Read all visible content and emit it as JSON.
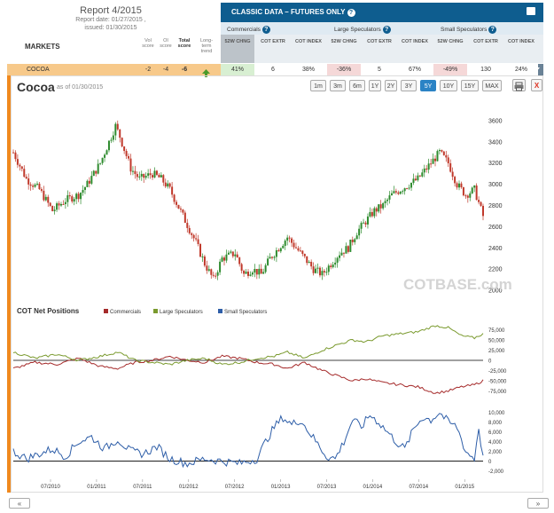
{
  "header": {
    "report_title": "Report 4/2015",
    "report_date": "Report date: 01/27/2015 ,",
    "issued": "issued: 01/30/2015",
    "markets_label": "MARKETS",
    "col_vol": "Vol score",
    "col_oi": "OI score",
    "col_total": "Total score",
    "col_trend": "Long-term trend"
  },
  "classic": {
    "title": "CLASSIC DATA – FUTURES ONLY",
    "groups": [
      "Commercials",
      "Large Speculators",
      "Small Speculators"
    ],
    "subcols": [
      "52W CHNG",
      "COT EXTR",
      "COT INDEX"
    ]
  },
  "row": {
    "market": "COCOA",
    "vol": "-2",
    "oi": "-4",
    "total": "-6",
    "trend_icon": "up-arrow-icon",
    "values": [
      "41%",
      "6",
      "38%",
      "-36%",
      "5",
      "67%",
      "-49%",
      "130",
      "24%"
    ]
  },
  "chart_header": {
    "title": "Cocoa",
    "as_of": "as of 01/30/2015",
    "ranges": [
      "1m",
      "3m",
      "6m",
      "1Y",
      "2Y",
      "3Y",
      "5Y",
      "10Y",
      "15Y",
      "MAX"
    ],
    "active_range": "5Y",
    "close_label": "X",
    "watermark": "COTBASE.com"
  },
  "cot_net": {
    "title": "COT Net Positions",
    "legend": [
      "Commercials",
      "Large Speculators",
      "Small Speculators"
    ],
    "colors": {
      "commercials": "#a52a2a",
      "large": "#7a9a2e",
      "small": "#2e5ea8",
      "up_candle": "#2e8b2e",
      "down_candle": "#c0392b"
    }
  },
  "nav": {
    "left": "«",
    "right": "»"
  },
  "chart_data": [
    {
      "type": "candlestick",
      "title": "Cocoa",
      "ylim": [
        1950,
        3750
      ],
      "y_ticks": [
        "3600",
        "3400",
        "3200",
        "3000",
        "2800",
        "2600",
        "2400",
        "2200",
        "2000"
      ],
      "y_tick_values": [
        3600,
        3400,
        3200,
        3000,
        2800,
        2600,
        2400,
        2200,
        2000
      ],
      "x_ticks": [
        "07/2010",
        "01/2011",
        "07/2011",
        "01/2012",
        "07/2012",
        "01/2013",
        "07/2013",
        "01/2014",
        "07/2014",
        "01/2015"
      ],
      "close_keypoints": [
        [
          0,
          3300
        ],
        [
          6,
          3050
        ],
        [
          12,
          2950
        ],
        [
          18,
          2750
        ],
        [
          24,
          2850
        ],
        [
          30,
          2900
        ],
        [
          34,
          3000
        ],
        [
          40,
          3200
        ],
        [
          44,
          3400
        ],
        [
          47,
          3550
        ],
        [
          49,
          3450
        ],
        [
          54,
          3150
        ],
        [
          58,
          3050
        ],
        [
          64,
          3100
        ],
        [
          68,
          3050
        ],
        [
          72,
          2950
        ],
        [
          78,
          2700
        ],
        [
          84,
          2450
        ],
        [
          88,
          2250
        ],
        [
          92,
          2100
        ],
        [
          96,
          2300
        ],
        [
          102,
          2350
        ],
        [
          106,
          2150
        ],
        [
          110,
          2200
        ],
        [
          114,
          2150
        ],
        [
          118,
          2300
        ],
        [
          122,
          2400
        ],
        [
          126,
          2500
        ],
        [
          130,
          2400
        ],
        [
          134,
          2300
        ],
        [
          138,
          2200
        ],
        [
          142,
          2150
        ],
        [
          146,
          2250
        ],
        [
          150,
          2350
        ],
        [
          154,
          2400
        ],
        [
          158,
          2550
        ],
        [
          162,
          2650
        ],
        [
          166,
          2750
        ],
        [
          170,
          2800
        ],
        [
          174,
          2900
        ],
        [
          178,
          2950
        ],
        [
          182,
          3000
        ],
        [
          186,
          3050
        ],
        [
          190,
          3150
        ],
        [
          194,
          3250
        ],
        [
          196,
          3300
        ],
        [
          200,
          3200
        ],
        [
          204,
          3000
        ],
        [
          208,
          2900
        ],
        [
          212,
          2950
        ],
        [
          216,
          2700
        ]
      ]
    },
    {
      "type": "line",
      "title": "COT Net Positions",
      "ylim": [
        -100000,
        100000
      ],
      "y_ticks": [
        "75,000",
        "50,000",
        "25,000",
        "0",
        "-25,000",
        "-50,000",
        "-75,000"
      ],
      "y_tick_values": [
        75000,
        50000,
        25000,
        0,
        -25000,
        -50000,
        -75000
      ],
      "series": [
        {
          "name": "Commercials",
          "keypoints": [
            [
              0,
              -20000
            ],
            [
              10,
              -5000
            ],
            [
              20,
              -10000
            ],
            [
              30,
              5000
            ],
            [
              40,
              -15000
            ],
            [
              48,
              -20000
            ],
            [
              56,
              -5000
            ],
            [
              64,
              0
            ],
            [
              72,
              10000
            ],
            [
              80,
              0
            ],
            [
              88,
              -5000
            ],
            [
              96,
              10000
            ],
            [
              104,
              5000
            ],
            [
              112,
              -5000
            ],
            [
              120,
              -10000
            ],
            [
              126,
              -20000
            ],
            [
              134,
              -5000
            ],
            [
              142,
              -25000
            ],
            [
              150,
              -40000
            ],
            [
              156,
              -50000
            ],
            [
              162,
              -45000
            ],
            [
              170,
              -55000
            ],
            [
              178,
              -60000
            ],
            [
              186,
              -65000
            ],
            [
              194,
              -80000
            ],
            [
              200,
              -75000
            ],
            [
              206,
              -65000
            ],
            [
              212,
              -60000
            ],
            [
              216,
              -50000
            ]
          ]
        },
        {
          "name": "Large Speculators",
          "keypoints": [
            [
              0,
              20000
            ],
            [
              10,
              5000
            ],
            [
              20,
              15000
            ],
            [
              30,
              0
            ],
            [
              40,
              10000
            ],
            [
              48,
              20000
            ],
            [
              56,
              0
            ],
            [
              64,
              -5000
            ],
            [
              72,
              -10000
            ],
            [
              80,
              0
            ],
            [
              88,
              5000
            ],
            [
              96,
              -10000
            ],
            [
              104,
              -5000
            ],
            [
              112,
              5000
            ],
            [
              120,
              10000
            ],
            [
              126,
              20000
            ],
            [
              134,
              5000
            ],
            [
              142,
              25000
            ],
            [
              150,
              40000
            ],
            [
              156,
              50000
            ],
            [
              162,
              45000
            ],
            [
              170,
              60000
            ],
            [
              178,
              65000
            ],
            [
              186,
              70000
            ],
            [
              194,
              85000
            ],
            [
              200,
              80000
            ],
            [
              206,
              60000
            ],
            [
              212,
              55000
            ],
            [
              216,
              65000
            ]
          ]
        }
      ]
    },
    {
      "type": "line",
      "title": "Small Speculators",
      "ylim": [
        -3000,
        10500
      ],
      "y_ticks": [
        "10,000",
        "8,000",
        "6,000",
        "4,000",
        "2,000",
        "0",
        "-2,000"
      ],
      "y_tick_values": [
        10000,
        8000,
        6000,
        4000,
        2000,
        0,
        -2000
      ],
      "series": [
        {
          "name": "Small Speculators",
          "keypoints": [
            [
              0,
              2000
            ],
            [
              6,
              500
            ],
            [
              12,
              1500
            ],
            [
              18,
              2500
            ],
            [
              24,
              1000
            ],
            [
              30,
              4000
            ],
            [
              36,
              5000
            ],
            [
              42,
              2500
            ],
            [
              48,
              4500
            ],
            [
              54,
              2000
            ],
            [
              60,
              1500
            ],
            [
              66,
              3000
            ],
            [
              72,
              500
            ],
            [
              80,
              -500
            ],
            [
              88,
              500
            ],
            [
              96,
              0
            ],
            [
              104,
              -500
            ],
            [
              112,
              500
            ],
            [
              116,
              4000
            ],
            [
              120,
              7000
            ],
            [
              124,
              9000
            ],
            [
              128,
              7500
            ],
            [
              132,
              8500
            ],
            [
              136,
              6000
            ],
            [
              140,
              3500
            ],
            [
              144,
              1000
            ],
            [
              148,
              500
            ],
            [
              152,
              4000
            ],
            [
              156,
              8500
            ],
            [
              160,
              7000
            ],
            [
              164,
              9500
            ],
            [
              168,
              8000
            ],
            [
              172,
              6000
            ],
            [
              176,
              4000
            ],
            [
              180,
              2500
            ],
            [
              184,
              6500
            ],
            [
              188,
              9000
            ],
            [
              192,
              8500
            ],
            [
              196,
              10000
            ],
            [
              200,
              8000
            ],
            [
              204,
              7000
            ],
            [
              208,
              2000
            ],
            [
              212,
              500
            ],
            [
              214,
              7000
            ],
            [
              216,
              500
            ]
          ]
        }
      ]
    }
  ]
}
